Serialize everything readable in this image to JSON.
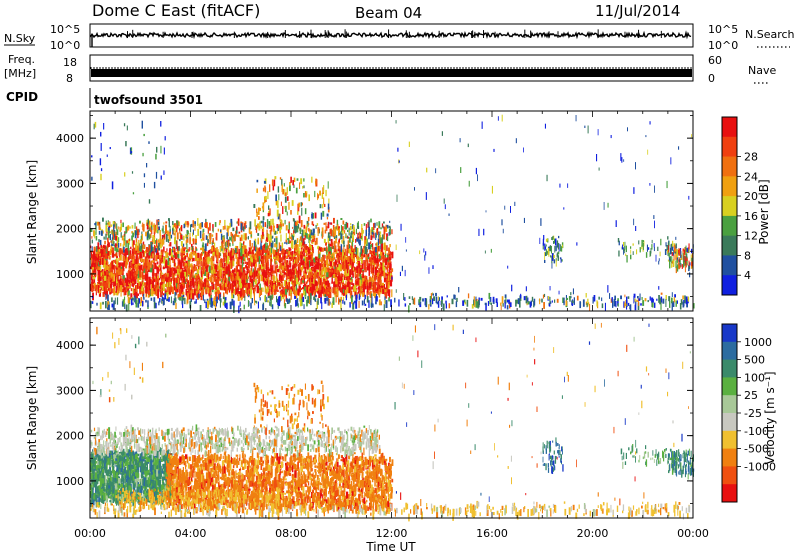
{
  "header": {
    "station": "Dome C East (fitACF)",
    "beam": "Beam 04",
    "date": "11/Jul/2014"
  },
  "top_panels": {
    "nsky_label": "N.Sky",
    "nsky_ticks": [
      "10^5",
      "10^0"
    ],
    "nsearch_label": "N.Search",
    "nsearch_ticks": [
      "10^5",
      "10^0"
    ],
    "freq_label": "Freq.",
    "freq_unit": "[MHz]",
    "freq_ticks": [
      "18",
      "8"
    ],
    "nave_label": "Nave",
    "nave_ticks": [
      "60",
      "0"
    ],
    "cpid_label": "CPID",
    "cpid_value": "twofsound 3501"
  },
  "chart_data": [
    {
      "type": "heatmap",
      "name": "power",
      "xlabel": "Time UT",
      "ylabel": "Slant Range [km]",
      "x_ticks": [
        "00:00",
        "04:00",
        "08:00",
        "12:00",
        "16:00",
        "20:00",
        "00:00"
      ],
      "x_range_hours": [
        0,
        24
      ],
      "y_ticks": [
        1000,
        2000,
        3000,
        4000
      ],
      "ylim": [
        180,
        4600
      ],
      "colorbar": {
        "label": "Power [dB]",
        "ticks": [
          "4",
          "8",
          "12",
          "16",
          "20",
          "24",
          "28"
        ],
        "colors": [
          "#1020e0",
          "#2050a0",
          "#3a7a5a",
          "#4aa040",
          "#d8d020",
          "#f0a010",
          "#f07010",
          "#f04010",
          "#e81010"
        ]
      }
    },
    {
      "type": "heatmap",
      "name": "velocity",
      "xlabel": "Time UT",
      "ylabel": "Slant Range [km]",
      "x_ticks": [
        "00:00",
        "04:00",
        "08:00",
        "12:00",
        "16:00",
        "20:00",
        "00:00"
      ],
      "x_range_hours": [
        0,
        24
      ],
      "y_ticks": [
        1000,
        2000,
        3000,
        4000
      ],
      "ylim": [
        180,
        4600
      ],
      "colorbar": {
        "label": "Velocity [m s⁻¹]",
        "ticks": [
          "1000",
          "500",
          "100",
          "25",
          "-25",
          "-100",
          "-500",
          "-1000"
        ],
        "colors": [
          "#1838c8",
          "#2c6ca0",
          "#3a8a6a",
          "#5ab040",
          "#a8c898",
          "#c8c8c0",
          "#f0c030",
          "#f08010",
          "#f05010",
          "#e81010"
        ]
      }
    }
  ]
}
